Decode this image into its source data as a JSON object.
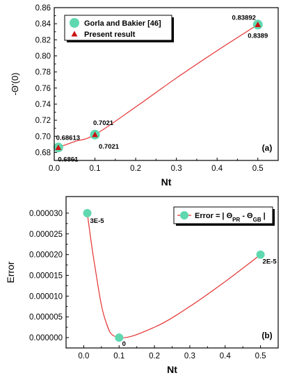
{
  "chart_data": [
    {
      "type": "scatter",
      "panel_tag": "(a)",
      "xlabel": "Nt",
      "ylabel": "-Θ'(0)",
      "xlim": [
        0.0,
        0.55
      ],
      "ylim": [
        0.67,
        0.86
      ],
      "xticks": [
        0.0,
        0.1,
        0.2,
        0.3,
        0.4,
        0.5
      ],
      "xtick_labels": [
        "0.0",
        "0.1",
        "0.2",
        "0.3",
        "0.4",
        "0.5"
      ],
      "yticks": [
        0.68,
        0.7,
        0.72,
        0.74,
        0.76,
        0.78,
        0.8,
        0.82,
        0.84,
        0.86
      ],
      "ytick_labels": [
        "0.68",
        "0.70",
        "0.72",
        "0.74",
        "0.76",
        "0.78",
        "0.80",
        "0.82",
        "0.84",
        "0.86"
      ],
      "legend_position": "top-left",
      "series": [
        {
          "name": "Gorla and Bakier [46]",
          "marker": "circle",
          "color": "#5fd8b0",
          "x": [
            0.01,
            0.1,
            0.5
          ],
          "y": [
            0.68613,
            0.7021,
            0.83892
          ],
          "labels": [
            "0.68613",
            "0.7021",
            "0.83892"
          ]
        },
        {
          "name": "Present result",
          "marker": "triangle",
          "color": "#cc1111",
          "x": [
            0.01,
            0.1,
            0.5
          ],
          "y": [
            0.6861,
            0.7021,
            0.8389
          ],
          "labels": [
            "0.6861",
            "0.7021",
            "0.8389"
          ]
        }
      ],
      "curve_color": "#e53030"
    },
    {
      "type": "scatter",
      "panel_tag": "(b)",
      "xlabel": "Nt",
      "ylabel": "Error",
      "xlim": [
        -0.05,
        0.55
      ],
      "ylim": [
        -2.5e-06,
        3.4e-05
      ],
      "xticks": [
        0.0,
        0.1,
        0.2,
        0.3,
        0.4,
        0.5
      ],
      "xtick_labels": [
        "0.0",
        "0.1",
        "0.2",
        "0.3",
        "0.4",
        "0.5"
      ],
      "yticks": [
        0.0,
        5e-06,
        1e-05,
        1.5e-05,
        2e-05,
        2.5e-05,
        3e-05
      ],
      "ytick_labels": [
        "0.000000",
        "0.000005",
        "0.000010",
        "0.000015",
        "0.000020",
        "0.000025",
        "0.000030"
      ],
      "legend_position": "top-right",
      "legend": {
        "prefix": "Error = | ",
        "theta1": "Θ",
        "sub1": "PR",
        "minus": " - ",
        "theta2": "Θ",
        "sub2": "GB",
        "suffix": " |"
      },
      "series": [
        {
          "name": "Error",
          "marker": "circle",
          "color": "#5fd8b0",
          "x": [
            0.01,
            0.1,
            0.5
          ],
          "y": [
            3e-05,
            0.0,
            2e-05
          ],
          "labels": [
            "3E-5",
            "0",
            "2E-5"
          ]
        }
      ],
      "curve_color": "#e53030"
    }
  ]
}
